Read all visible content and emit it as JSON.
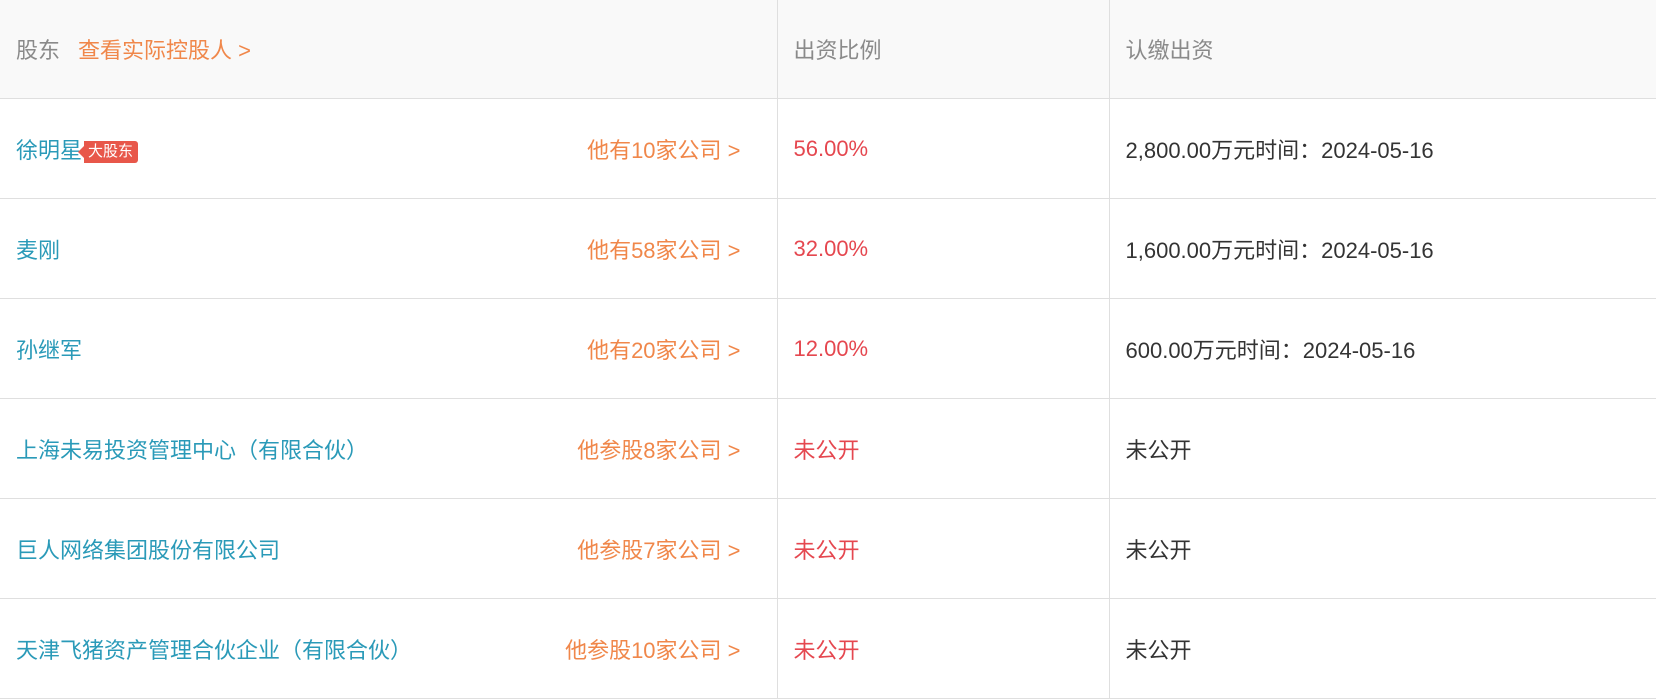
{
  "header": {
    "shareholder": "股东",
    "actual_controller_link": "查看实际控股人 >",
    "ratio": "出资比例",
    "subscribed": "认缴出资"
  },
  "rows": [
    {
      "name": "徐明星",
      "badge": "大股东",
      "companies": "他有10家公司 >",
      "ratio": "56.00%",
      "subscribed": "2,800.00万元时间：2024-05-16"
    },
    {
      "name": "麦刚",
      "companies": "他有58家公司 >",
      "ratio": "32.00%",
      "subscribed": "1,600.00万元时间：2024-05-16"
    },
    {
      "name": "孙继军",
      "companies": "他有20家公司 >",
      "ratio": "12.00%",
      "subscribed": "600.00万元时间：2024-05-16"
    },
    {
      "name": "上海未易投资管理中心（有限合伙）",
      "companies": "他参股8家公司 >",
      "ratio": "未公开",
      "subscribed": "未公开"
    },
    {
      "name": "巨人网络集团股份有限公司",
      "companies": "他参股7家公司 >",
      "ratio": "未公开",
      "subscribed": "未公开"
    },
    {
      "name": "天津飞猪资产管理合伙企业（有限合伙）",
      "companies": "他参股10家公司 >",
      "ratio": "未公开",
      "subscribed": "未公开"
    }
  ],
  "colors": {
    "name": "#2a9ab8",
    "link": "#f0874a",
    "ratio": "#e5474f",
    "badge": "#e8574a"
  }
}
